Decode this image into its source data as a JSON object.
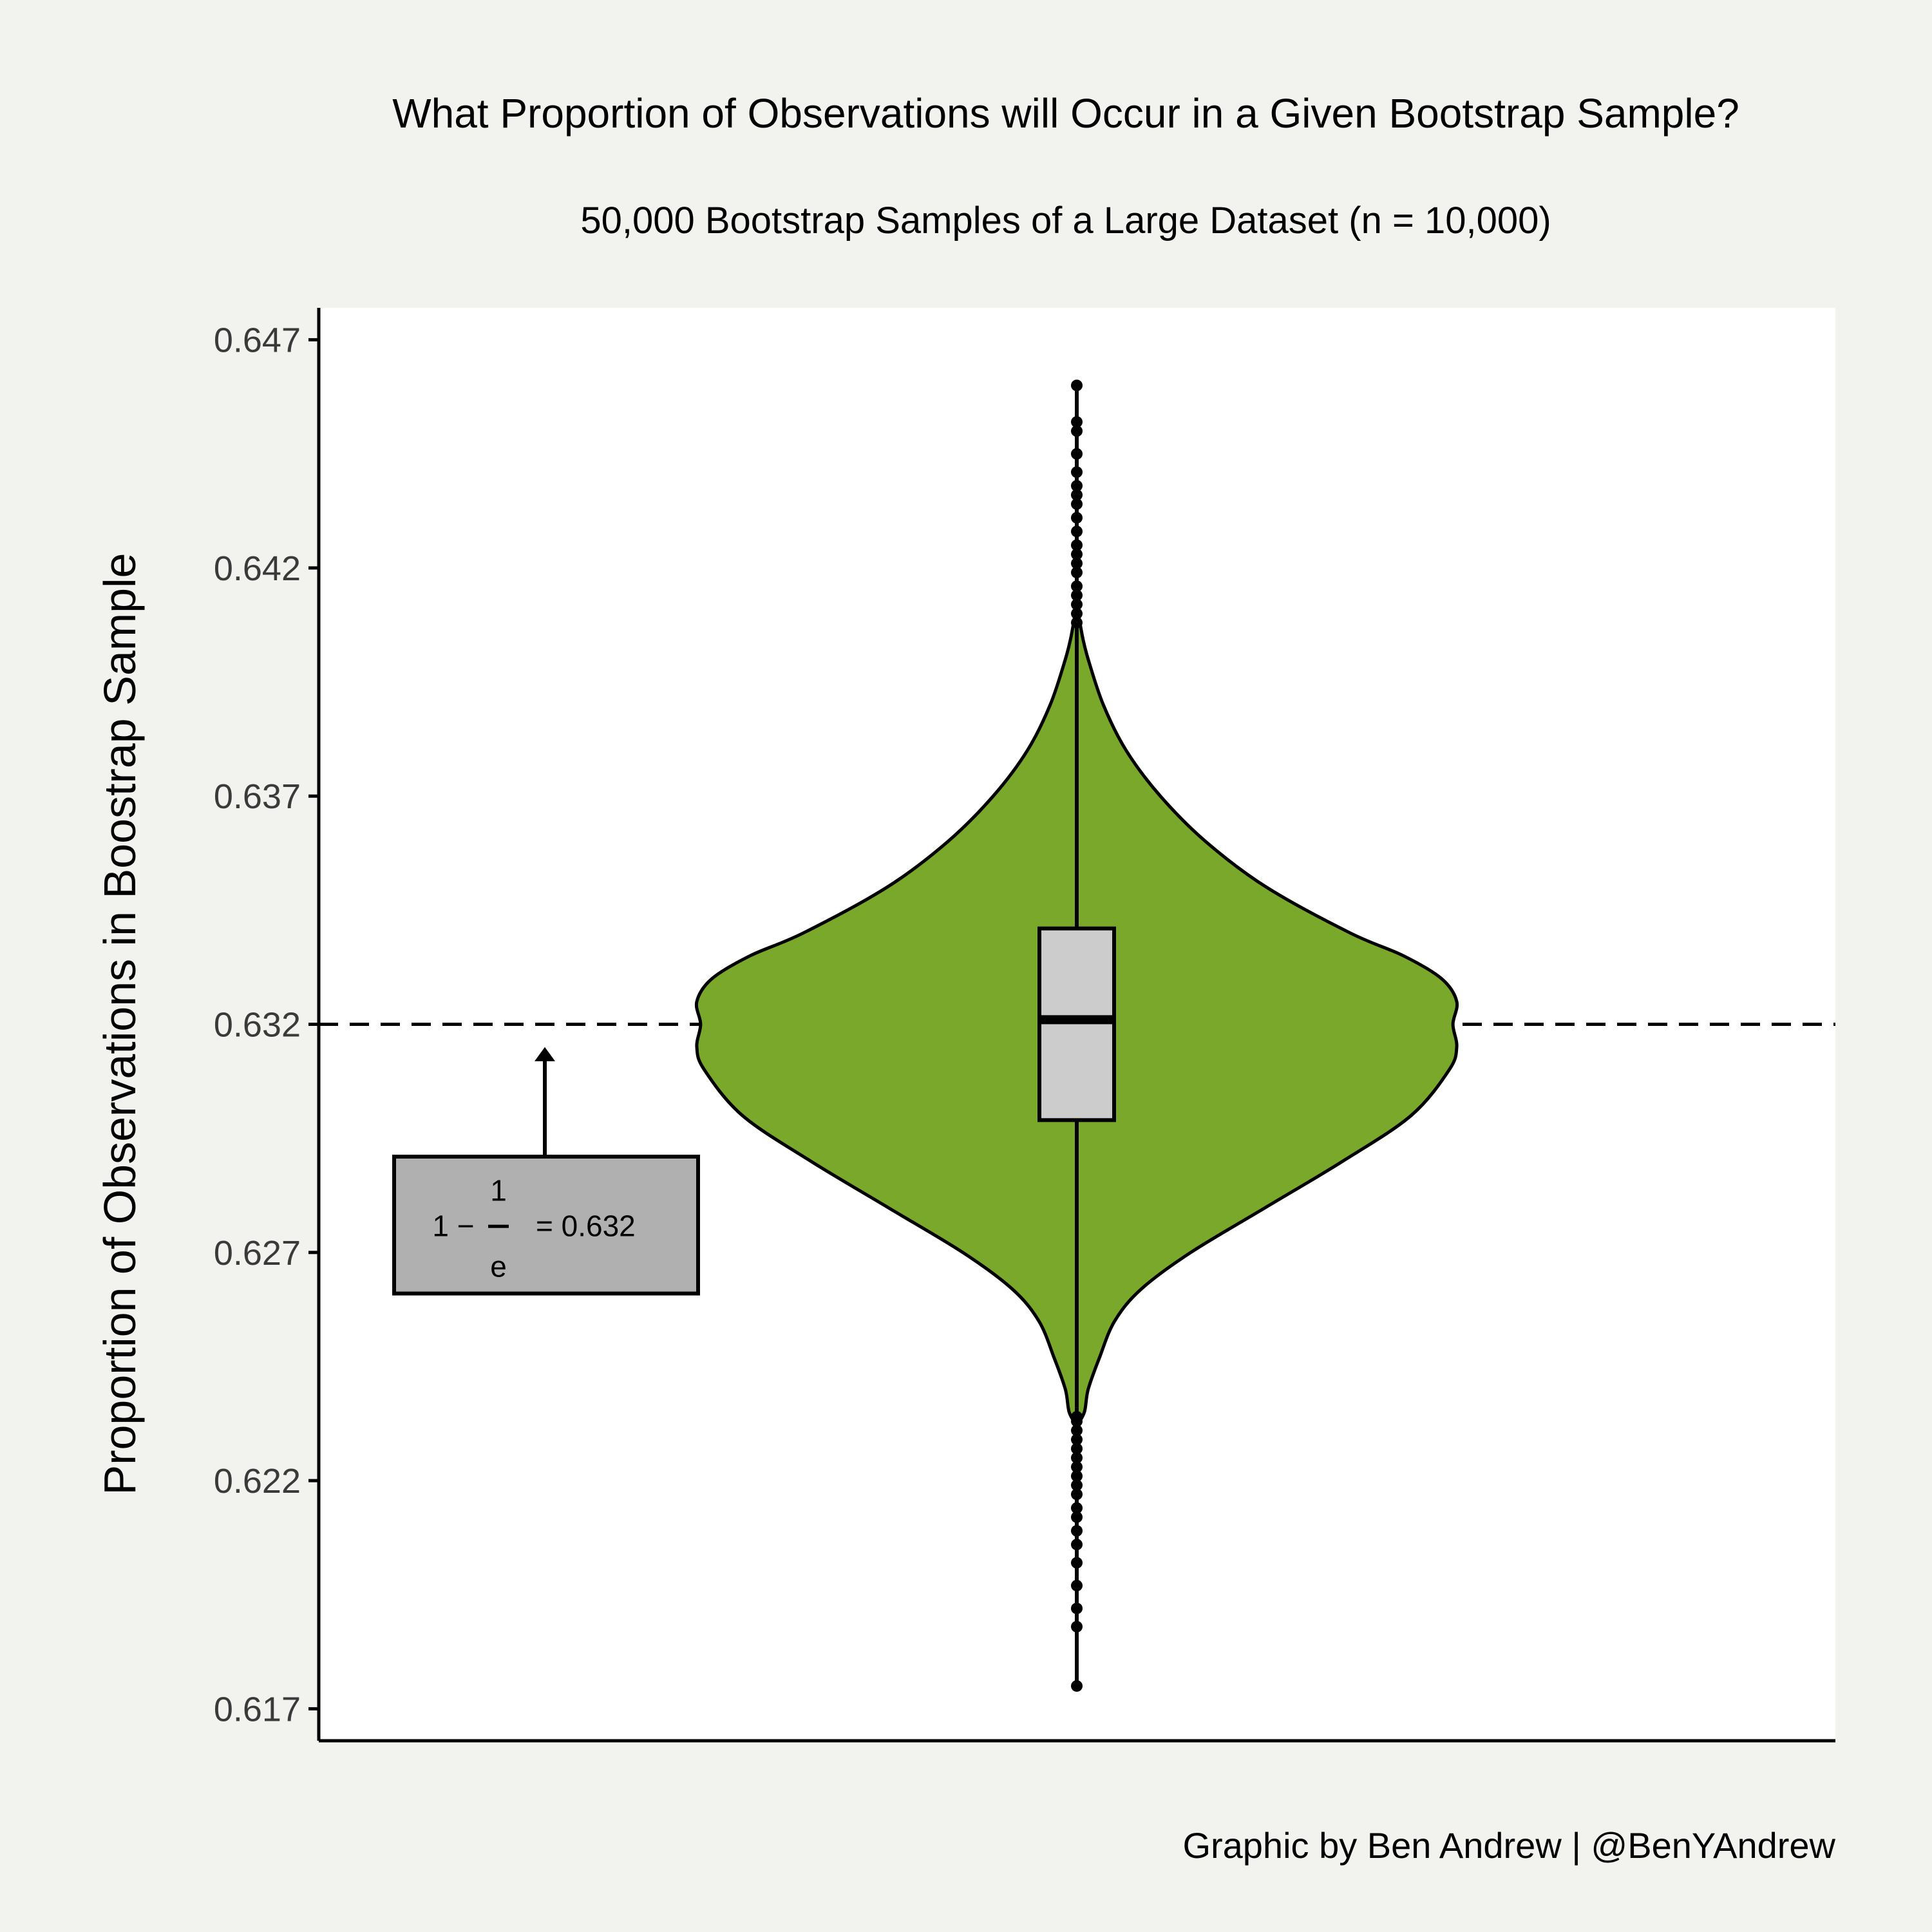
{
  "colors": {
    "background": "#f2f2ee",
    "panel": "#ffffff",
    "violin_fill": "#7aa82b",
    "box_fill": "#cccccc",
    "annotation_fill": "#b0b0b0",
    "ink": "#000000"
  },
  "chart_data": {
    "type": "violin",
    "title": "What Proportion of Observations will Occur in a Given Bootstrap Sample?",
    "subtitle": "50,000 Bootstrap Samples of a Large Dataset (n = 10,000)",
    "xlabel": "",
    "ylabel": "Proportion of Observations in Boostrap Sample",
    "caption": "Graphic by Ben Andrew | @BenYAndrew",
    "ylim": [
      0.6163,
      0.6477
    ],
    "y_ticks": [
      0.617,
      0.622,
      0.627,
      0.632,
      0.637,
      0.642,
      0.647
    ],
    "y_tick_labels": [
      "0.617",
      "0.622",
      "0.627",
      "0.632",
      "0.637",
      "0.642",
      "0.647"
    ],
    "reference_line": {
      "y": 0.632,
      "style": "dashed"
    },
    "violin": {
      "y_min": 0.6232,
      "y_max": 0.6412,
      "density_profile": [
        [
          0.6232,
          0.0
        ],
        [
          0.6235,
          0.02
        ],
        [
          0.624,
          0.03
        ],
        [
          0.6247,
          0.06
        ],
        [
          0.6255,
          0.1
        ],
        [
          0.6262,
          0.17
        ],
        [
          0.627,
          0.3
        ],
        [
          0.628,
          0.5
        ],
        [
          0.629,
          0.7
        ],
        [
          0.63,
          0.88
        ],
        [
          0.631,
          0.98
        ],
        [
          0.6315,
          1.0
        ],
        [
          0.632,
          0.99
        ],
        [
          0.6325,
          1.0
        ],
        [
          0.633,
          0.96
        ],
        [
          0.6335,
          0.86
        ],
        [
          0.634,
          0.72
        ],
        [
          0.635,
          0.5
        ],
        [
          0.636,
          0.34
        ],
        [
          0.637,
          0.22
        ],
        [
          0.638,
          0.13
        ],
        [
          0.639,
          0.07
        ],
        [
          0.64,
          0.03
        ],
        [
          0.6405,
          0.015
        ],
        [
          0.6412,
          0.0
        ]
      ]
    },
    "box": {
      "q1": 0.6299,
      "median": 0.6321,
      "q3": 0.6341,
      "whisker_low": 0.6236,
      "whisker_high": 0.6406
    },
    "outliers": [
      0.6175,
      0.6188,
      0.6192,
      0.6197,
      0.6202,
      0.6206,
      0.6209,
      0.6212,
      0.6214,
      0.6217,
      0.6219,
      0.6221,
      0.6223,
      0.6225,
      0.6227,
      0.6229,
      0.6231,
      0.6233,
      0.6234,
      0.6408,
      0.641,
      0.6412,
      0.6414,
      0.6416,
      0.6419,
      0.6421,
      0.6423,
      0.6425,
      0.6428,
      0.6431,
      0.6434,
      0.6436,
      0.6438,
      0.6441,
      0.6445,
      0.645,
      0.6452,
      0.646
    ],
    "annotation": {
      "numerator": "1",
      "prefix": "1 −",
      "denominator": "e",
      "result": "= 0.632",
      "arrow_to_y": 0.6315,
      "box_y_range": [
        0.6261,
        0.6291
      ]
    }
  }
}
